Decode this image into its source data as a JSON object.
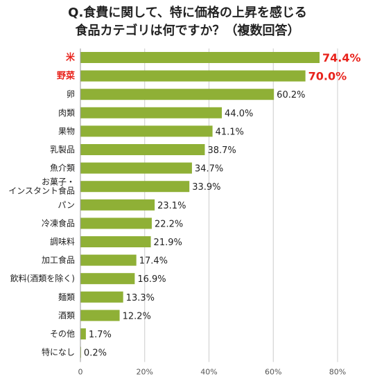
{
  "chart_data": {
    "type": "bar",
    "orientation": "horizontal",
    "title": [
      "Q.食費に関して、特に価格の上昇を感じる",
      "食品カテゴリは何ですか？（複数回答）"
    ],
    "categories": [
      [
        "米"
      ],
      [
        "野菜"
      ],
      [
        "卵"
      ],
      [
        "肉類"
      ],
      [
        "果物"
      ],
      [
        "乳製品"
      ],
      [
        "魚介類"
      ],
      [
        "お菓子・",
        "インスタント食品"
      ],
      [
        "パン"
      ],
      [
        "冷凍食品"
      ],
      [
        "調味料"
      ],
      [
        "加工食品"
      ],
      [
        "飲料(酒類を除く)"
      ],
      [
        "麺類"
      ],
      [
        "酒類"
      ],
      [
        "その他"
      ],
      [
        "特になし"
      ]
    ],
    "values": [
      74.4,
      70.0,
      60.2,
      44.0,
      41.1,
      38.7,
      34.7,
      33.9,
      23.1,
      22.2,
      21.9,
      17.4,
      16.9,
      13.3,
      12.2,
      1.7,
      0.2
    ],
    "value_labels": [
      "74.4%",
      "70.0%",
      "60.2%",
      "44.0%",
      "41.1%",
      "38.7%",
      "34.7%",
      "33.9%",
      "23.1%",
      "22.2%",
      "21.9%",
      "17.4%",
      "16.9%",
      "13.3%",
      "12.2%",
      "1.7%",
      "0.2%"
    ],
    "highlighted": [
      0,
      1
    ],
    "xlim": [
      0,
      80
    ],
    "xticks": [
      0,
      20,
      40,
      60,
      80
    ],
    "xtick_labels": [
      "0",
      "20%",
      "40%",
      "60%",
      "80%"
    ],
    "grid": true,
    "colors": {
      "bar": "#8fb036",
      "highlight_text": "#e8231c",
      "grid": "#cccccc",
      "axis": "#999999"
    }
  }
}
